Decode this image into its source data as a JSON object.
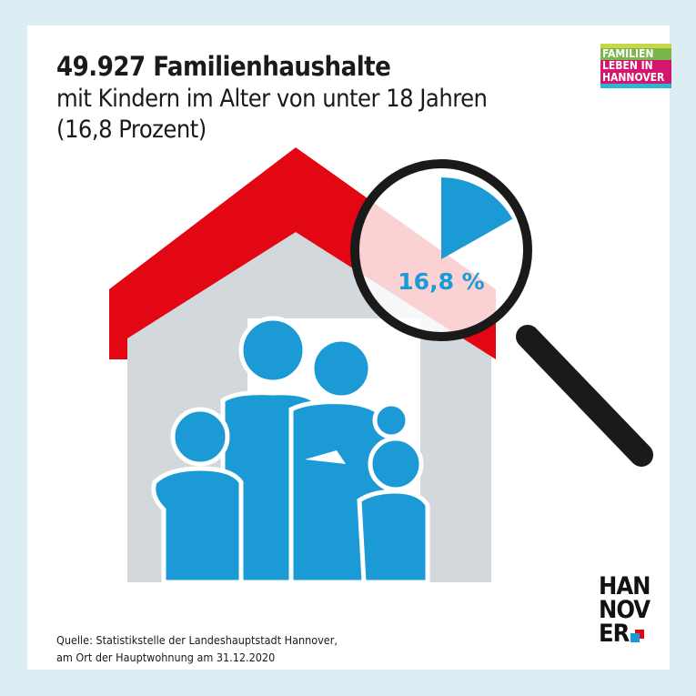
{
  "header": {
    "title": "49.927 Familienhaushalte",
    "subtitle_line1": "mit Kindern im Alter von unter 18 Jahren",
    "subtitle_line2": "(16,8 Prozent)"
  },
  "magnifier": {
    "value_label": "16,8 %",
    "share_percent": 16.8
  },
  "source": {
    "line1": "Quelle: Statistikstelle der Landeshauptstadt Hannover,",
    "line2": "am Ort der Hauptwohnung am 31.12.2020"
  },
  "logos": {
    "familien": [
      "FAMILIEN",
      "LEBEN IN",
      "HANNOVER"
    ],
    "hannover": [
      "HAN",
      "NOV",
      "ER"
    ]
  },
  "colors": {
    "accent_blue": "#1b9ad6",
    "roof_red": "#e30613",
    "house_gray": "#d3d8dc",
    "border": "#dcedf4"
  }
}
